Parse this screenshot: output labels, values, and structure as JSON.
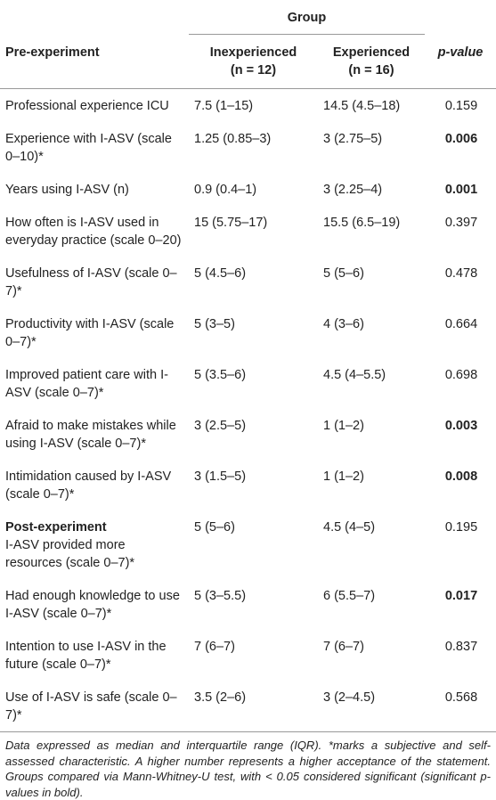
{
  "header": {
    "group": "Group",
    "section": "Pre-experiment",
    "columns": [
      {
        "title": "Inexperienced",
        "n": "(n = 12)"
      },
      {
        "title": "Experienced",
        "n": "(n = 16)"
      },
      {
        "title": "p-value"
      }
    ]
  },
  "table": {
    "rows": [
      {
        "label": "Professional experience ICU",
        "cells": [
          "7.5 (1–15)",
          "14.5 (4.5–18)",
          "0.159"
        ],
        "bold": false
      },
      {
        "label": "Experience with I-ASV (scale 0–10)*",
        "cells": [
          "1.25 (0.85–3)",
          "3 (2.75–5)",
          "0.006"
        ],
        "bold": true
      },
      {
        "label": "Years using I-ASV (n)",
        "cells": [
          "0.9 (0.4–1)",
          "3 (2.25–4)",
          "0.001"
        ],
        "bold": true
      },
      {
        "label": "How often is I-ASV used in everyday practice (scale 0–20)",
        "cells": [
          "15 (5.75–17)",
          "15.5 (6.5–19)",
          "0.397"
        ],
        "bold": false
      },
      {
        "label": "Usefulness of I-ASV (scale 0–7)*",
        "cells": [
          "5 (4.5–6)",
          "5 (5–6)",
          "0.478"
        ],
        "bold": false
      },
      {
        "label": "Productivity with I-ASV (scale 0–7)*",
        "cells": [
          "5 (3–5)",
          "4 (3–6)",
          "0.664"
        ],
        "bold": false
      },
      {
        "label": "Improved patient care with I-ASV (scale 0–7)*",
        "cells": [
          "5 (3.5–6)",
          "4.5 (4–5.5)",
          "0.698"
        ],
        "bold": false
      },
      {
        "label": "Afraid to make mistakes while using I-ASV (scale 0–7)*",
        "cells": [
          "3 (2.5–5)",
          "1 (1–2)",
          "0.003"
        ],
        "bold": true
      },
      {
        "label": "Intimidation caused by I-ASV (scale 0–7)*",
        "cells": [
          "3 (1.5–5)",
          "1 (1–2)",
          "0.008"
        ],
        "bold": true
      },
      {
        "section": "Post-experiment",
        "label": "I-ASV provided more resources (scale 0–7)*",
        "cells": [
          "5 (5–6)",
          "4.5 (4–5)",
          "0.195"
        ],
        "bold": false
      },
      {
        "label": "Had enough knowledge to use I-ASV (scale 0–7)*",
        "cells": [
          "5 (3–5.5)",
          "6 (5.5–7)",
          "0.017"
        ],
        "bold": true
      },
      {
        "label": "Intention to use I-ASV in the future (scale 0–7)*",
        "cells": [
          "7 (6–7)",
          "7 (6–7)",
          "0.837"
        ],
        "bold": false
      },
      {
        "label": "Use of I-ASV is safe (scale 0–7)*",
        "cells": [
          "3.5 (2–6)",
          "3 (2–4.5)",
          "0.568"
        ],
        "bold": false
      }
    ]
  },
  "footnote": "Data expressed as median and interquartile range (IQR). *marks a subjective and self-assessed characteristic. A higher number represents a higher acceptance of the statement. Groups compared via Mann-Whitney-U test, with < 0.05 considered significant (significant p-values in bold)."
}
